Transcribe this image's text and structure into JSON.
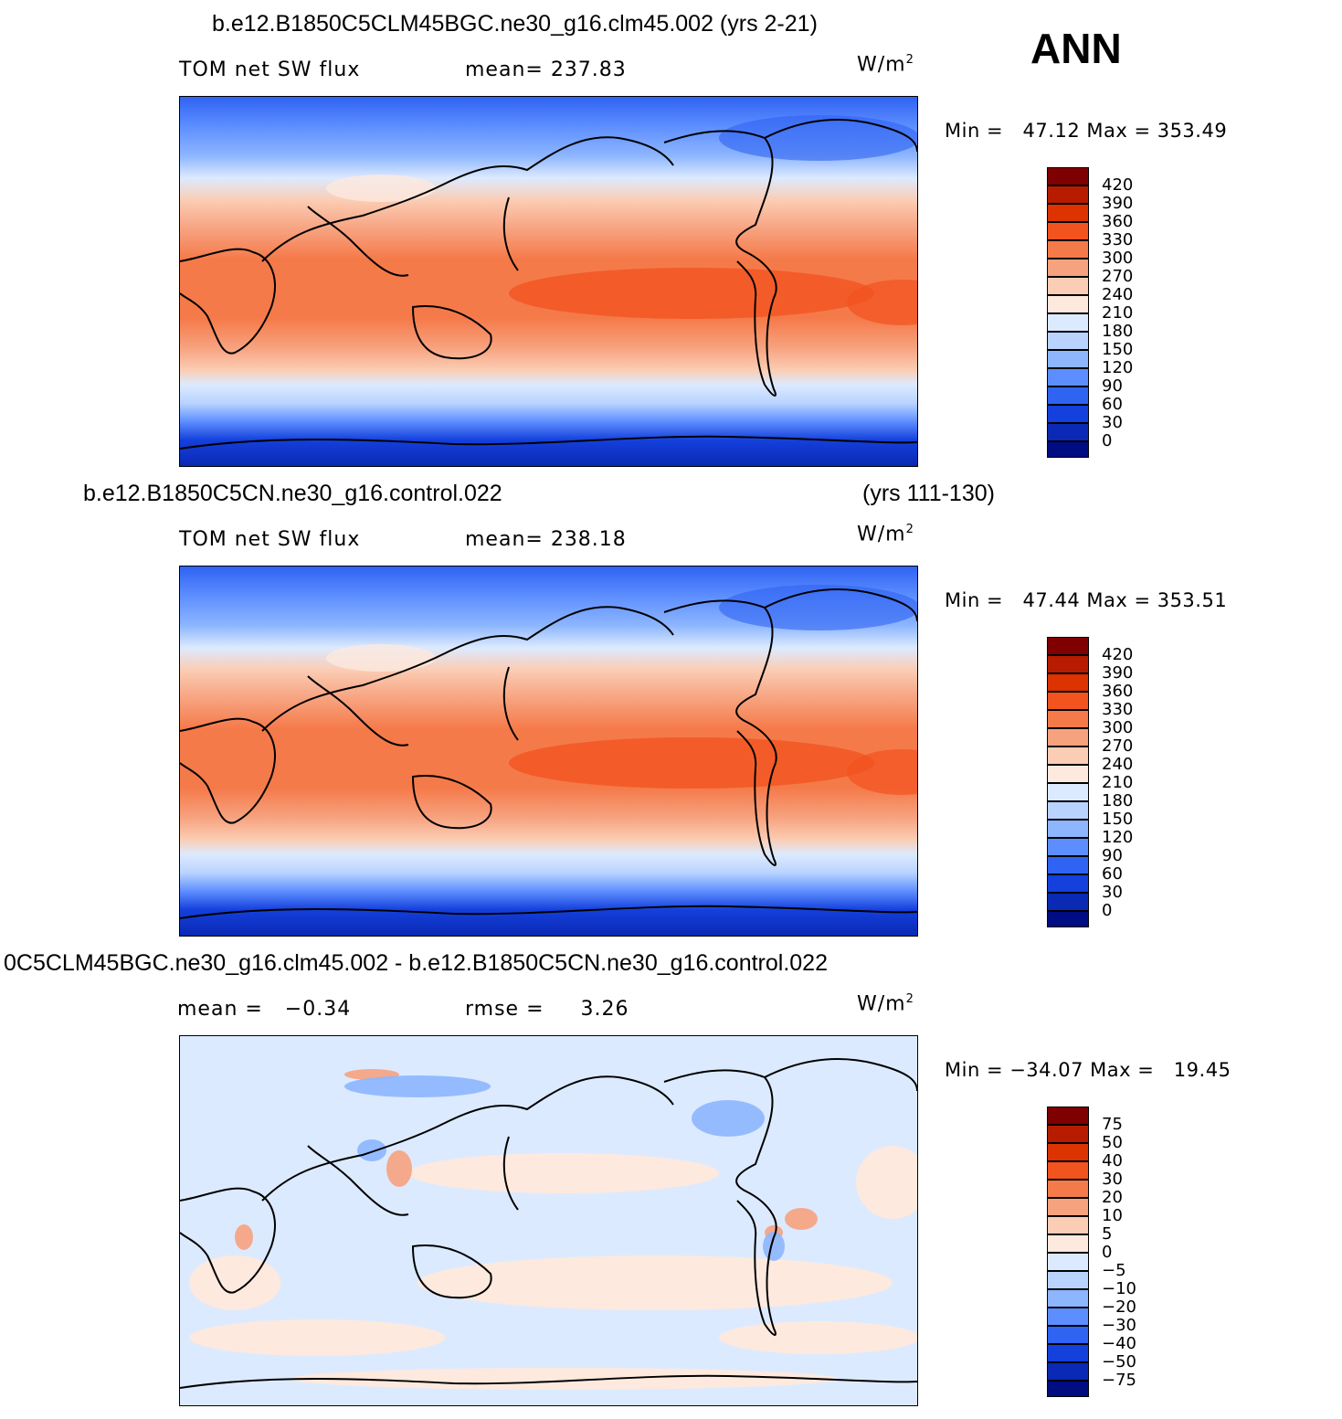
{
  "season": "ANN",
  "panels": [
    {
      "title": "b.e12.B1850C5CLM45BGC.ne30_g16.clm45.002 (yrs 2-21)",
      "title_right": "",
      "left_label": "TOM net SW flux",
      "mid_label": "mean= 237.83",
      "units_base": "W/m",
      "units_exp": "2",
      "minmax": "Min =   47.12 Max = 353.49",
      "levels": [
        "420",
        "390",
        "360",
        "330",
        "300",
        "270",
        "240",
        "210",
        "180",
        "150",
        "120",
        "90",
        "60",
        "30",
        "0"
      ]
    },
    {
      "title": "b.e12.B1850C5CN.ne30_g16.control.022",
      "title_right": "(yrs 111-130)",
      "left_label": "TOM net SW flux",
      "mid_label": "mean= 238.18",
      "units_base": "W/m",
      "units_exp": "2",
      "minmax": "Min =   47.44 Max = 353.51",
      "levels": [
        "420",
        "390",
        "360",
        "330",
        "300",
        "270",
        "240",
        "210",
        "180",
        "150",
        "120",
        "90",
        "60",
        "30",
        "0"
      ]
    },
    {
      "title": "0C5CLM45BGC.ne30_g16.clm45.002 - b.e12.B1850C5CN.ne30_g16.control.022",
      "title_right": "",
      "left_label": "mean =   −0.34",
      "mid_label": "rmse =     3.26",
      "units_base": "W/m",
      "units_exp": "2",
      "minmax": "Min = −34.07 Max =   19.45",
      "levels": [
        "75",
        "50",
        "40",
        "30",
        "20",
        "10",
        "5",
        "0",
        "−5",
        "−10",
        "−20",
        "−30",
        "−40",
        "−50",
        "−75"
      ]
    }
  ],
  "colors": {
    "abs_scale": [
      "#7f0000",
      "#b71c00",
      "#dc3300",
      "#f2531f",
      "#f57a4a",
      "#f7a27f",
      "#fbcdb4",
      "#fde9de",
      "#dceaff",
      "#b9d3ff",
      "#8db6ff",
      "#5d8eff",
      "#2f63f2",
      "#1440dc",
      "#0a29b4",
      "#000c82"
    ],
    "diff_scale": [
      "#7f0000",
      "#b71c00",
      "#dc3300",
      "#f2531f",
      "#f57a4a",
      "#f7a27f",
      "#fbcdb4",
      "#fde9de",
      "#dceaff",
      "#b9d3ff",
      "#8db6ff",
      "#5d8eff",
      "#2f63f2",
      "#1440dc",
      "#0a29b4",
      "#000c82"
    ]
  }
}
